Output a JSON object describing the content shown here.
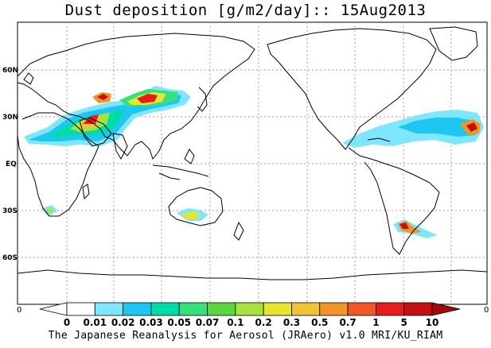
{
  "title": "Dust deposition [g/m2/day]:: 15Aug2013",
  "footer": "The Japanese Reanalysis for Aerosol (JRAero) v1.0 MRI/KU_RIAM",
  "axes": {
    "lat_labels": [
      "60N",
      "30N",
      "EQ",
      "30S",
      "60S"
    ],
    "left_corner": "0",
    "right_corner": "0"
  },
  "colorbar": {
    "labels": [
      "0",
      "0.01",
      "0.02",
      "0.03",
      "0.05",
      "0.07",
      "0.1",
      "0.2",
      "0.3",
      "0.5",
      "0.7",
      "1",
      "5",
      "10"
    ],
    "colors": [
      "#ffffff",
      "#ffffff",
      "#7fe6ff",
      "#1fc6f2",
      "#00dca8",
      "#38e07a",
      "#58d83c",
      "#a8e23c",
      "#e6e632",
      "#f0c438",
      "#f09628",
      "#f05828",
      "#e81c1c",
      "#c41010",
      "#a00a0a"
    ]
  },
  "chart_data": {
    "type": "heatmap",
    "title": "Dust deposition [g/m2/day]:: 15Aug2013",
    "date": "15Aug2013",
    "variable": "Dust deposition",
    "units": "g/m2/day",
    "levels": [
      0,
      0.01,
      0.02,
      0.03,
      0.05,
      0.07,
      0.1,
      0.2,
      0.3,
      0.5,
      0.7,
      1,
      5,
      10
    ],
    "lat_ticks": [
      "60N",
      "30N",
      "EQ",
      "30S",
      "60S"
    ]
  }
}
